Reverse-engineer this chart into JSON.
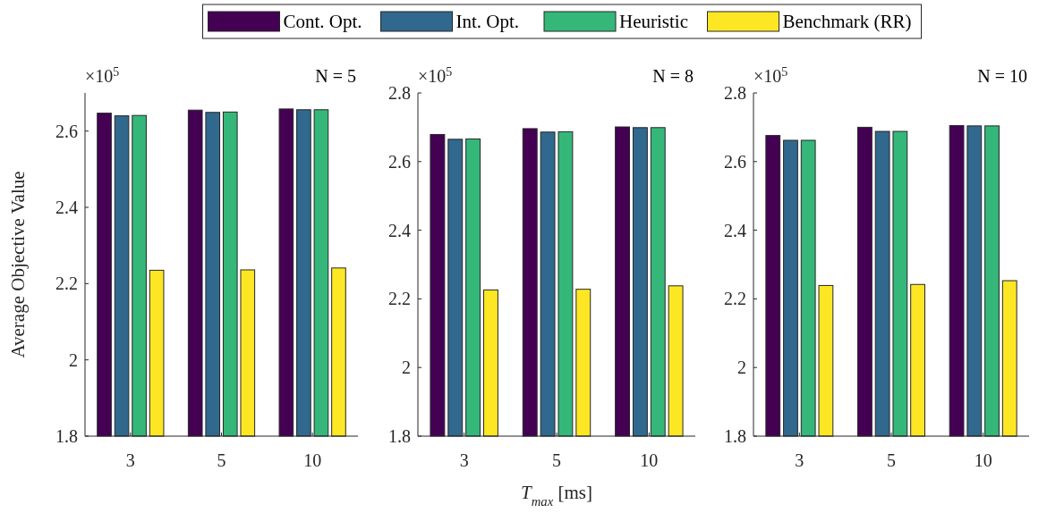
{
  "chart_data": [
    {
      "type": "bar",
      "title": "N = 5",
      "ylabel": "Average Objective Value",
      "annotations": [
        "×10$^{5}$"
      ],
      "categories": [
        "3",
        "5",
        "10"
      ],
      "ylim": [
        1.8,
        2.7
      ],
      "yticks": [
        1.8,
        2,
        2.2,
        2.4,
        2.6
      ],
      "legend": "top",
      "series": [
        {
          "name": "Cont. Opt.",
          "color": "#440154",
          "values": [
            2.647,
            2.655,
            2.658
          ]
        },
        {
          "name": "Int. Opt.",
          "color": "#31688e",
          "values": [
            2.64,
            2.649,
            2.656
          ]
        },
        {
          "name": "Heuristic",
          "color": "#35b779",
          "values": [
            2.641,
            2.65,
            2.656
          ]
        },
        {
          "name": "Benchmark (RR)",
          "color": "#fde725",
          "values": [
            2.235,
            2.236,
            2.241
          ]
        }
      ]
    },
    {
      "type": "bar",
      "title": "N = 8",
      "xlabel": "T$_{max}$ [ms]",
      "annotations": [
        "×10$^{5}$"
      ],
      "categories": [
        "3",
        "5",
        "10"
      ],
      "ylim": [
        1.8,
        2.8
      ],
      "yticks": [
        1.8,
        2,
        2.2,
        2.4,
        2.6,
        2.8
      ],
      "series": [
        {
          "color": "#440154",
          "values": [
            2.679,
            2.696,
            2.701
          ]
        },
        {
          "color": "#31688e",
          "values": [
            2.665,
            2.686,
            2.699
          ]
        },
        {
          "color": "#35b779",
          "values": [
            2.666,
            2.687,
            2.699
          ]
        },
        {
          "color": "#fde725",
          "values": [
            2.226,
            2.228,
            2.238
          ]
        }
      ]
    },
    {
      "type": "bar",
      "title": "N = 10",
      "annotations": [
        "×10$^{5}$"
      ],
      "categories": [
        "3",
        "5",
        "10"
      ],
      "ylim": [
        1.8,
        2.8
      ],
      "yticks": [
        1.8,
        2,
        2.2,
        2.4,
        2.6,
        2.8
      ],
      "series": [
        {
          "color": "#440154",
          "values": [
            2.676,
            2.7,
            2.705
          ]
        },
        {
          "color": "#31688e",
          "values": [
            2.662,
            2.688,
            2.704
          ]
        },
        {
          "color": "#35b779",
          "values": [
            2.662,
            2.688,
            2.704
          ]
        },
        {
          "color": "#fde725",
          "values": [
            2.239,
            2.242,
            2.253
          ]
        }
      ]
    }
  ]
}
